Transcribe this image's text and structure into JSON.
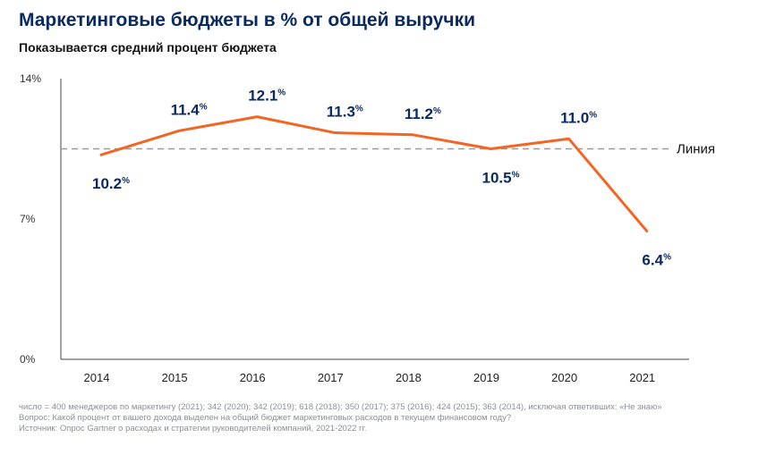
{
  "chart_data": {
    "type": "line",
    "title": "Маркетинговые бюджеты в % от общей выручки",
    "subtitle": "Показывается средний процент бюджета",
    "categories": [
      "2014",
      "2015",
      "2016",
      "2017",
      "2018",
      "2019",
      "2020",
      "2021"
    ],
    "series": [
      {
        "name": "Средний процент бюджета",
        "values": [
          10.2,
          11.4,
          12.1,
          11.3,
          11.2,
          10.5,
          11.0,
          6.4
        ]
      }
    ],
    "data_labels": [
      "10.2",
      "11.4",
      "12.1",
      "11.3",
      "11.2",
      "10.5",
      "11.0",
      "6.4"
    ],
    "label_suffix": "%",
    "reference_line": {
      "value": 10.5,
      "label": "Линия"
    },
    "y_ticks": [
      "0%",
      "7%",
      "14%"
    ],
    "ylim": [
      0,
      14
    ],
    "xlabel": "",
    "ylabel": "",
    "colors": {
      "line": "#f26522",
      "labels": "#0b2a63",
      "reference": "#9a9a9a"
    }
  },
  "footnotes": [
    "число = 400 менеджеров по маркетингу (2021); 342 (2020); 342 (2019); 618 (2018); 350 (2017); 375 (2016); 424 (2015); 363 (2014), исключая ответивших: «Не знаю»",
    "Вопрос: Какой процент от вашего дохода выделен на общий бюджет маркетинговых расходов в текущем финансовом году?",
    "Источник: Опрос Gartner о расходах и стратегии руководителей компаний, 2021-2022 гг."
  ]
}
